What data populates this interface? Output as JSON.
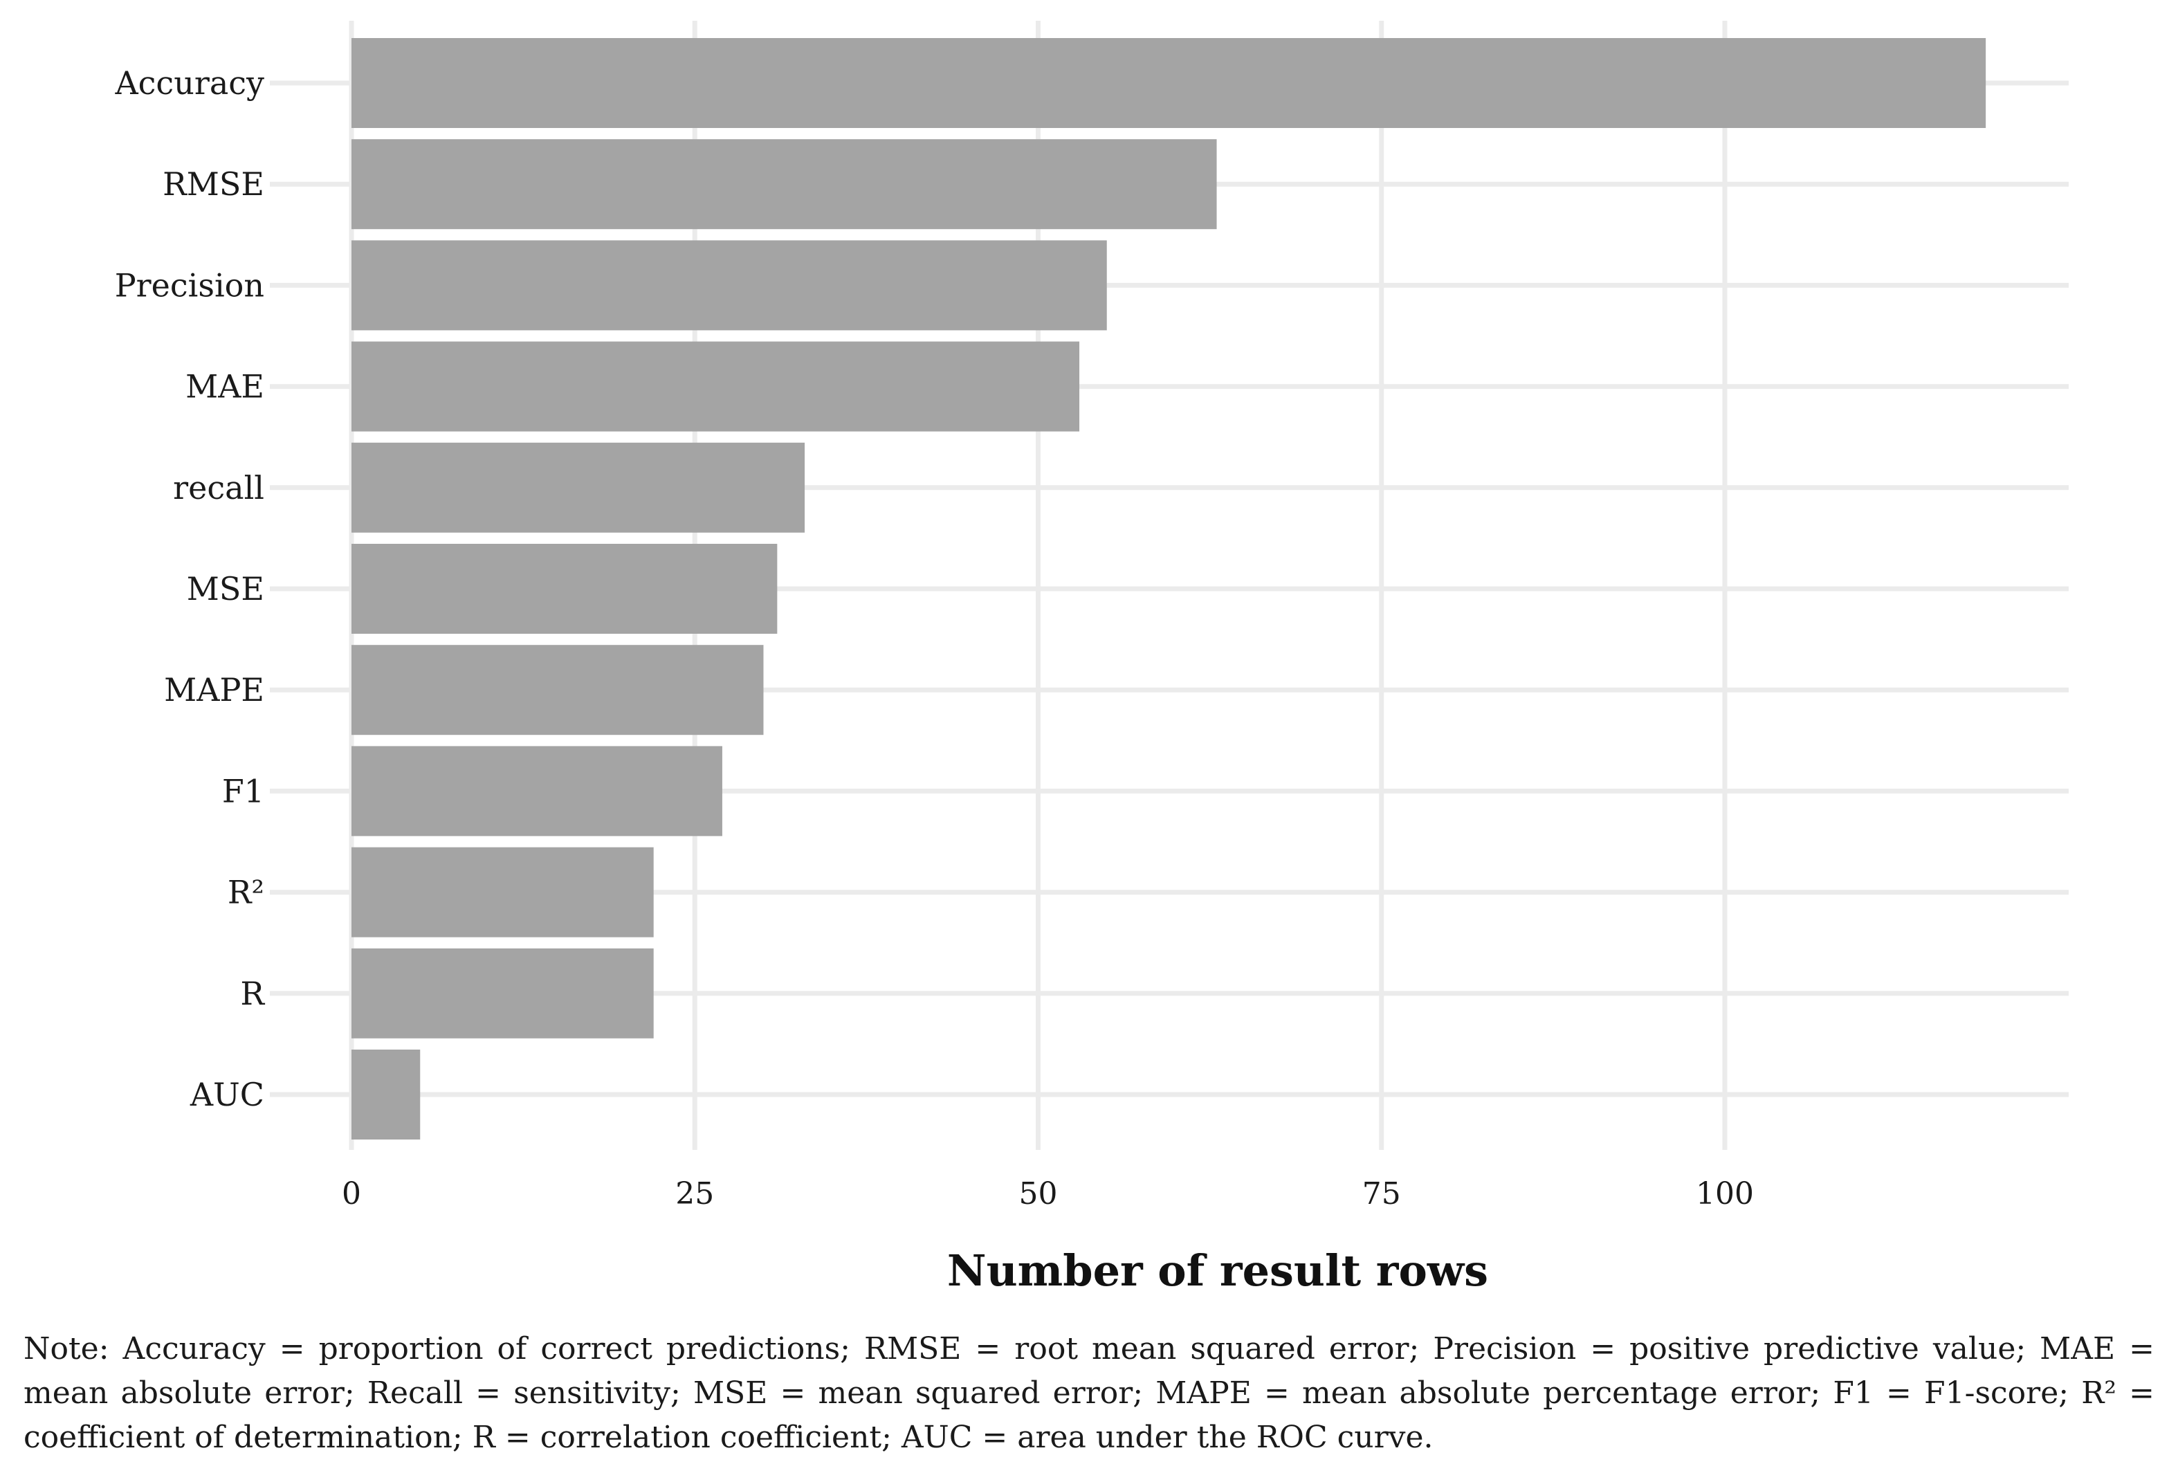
{
  "chart_data": {
    "type": "bar",
    "orientation": "horizontal",
    "categories": [
      "Accuracy",
      "RMSE",
      "Precision",
      "MAE",
      "recall",
      "MSE",
      "MAPE",
      "F1",
      "R²",
      "R",
      "AUC"
    ],
    "values": [
      119,
      63,
      55,
      53,
      33,
      31,
      30,
      27,
      22,
      22,
      5
    ],
    "xlabel": "Number of result rows",
    "ylabel": "",
    "xlim": [
      0,
      125
    ],
    "x_ticks": [
      0,
      25,
      50,
      75,
      100
    ],
    "grid": true,
    "bar_color": "#a4a4a4",
    "grid_color": "#ebebeb"
  },
  "note": "Note: Accuracy = proportion of correct predictions; RMSE = root mean squared error; Precision = positive predictive value; MAE = mean absolute error; Recall = sensitivity; MSE = mean squared error; MAPE = mean absolute percentage error; F1 = F1-score; R² = coefficient of determination; R = correlation coefficient; AUC = area under the ROC curve."
}
